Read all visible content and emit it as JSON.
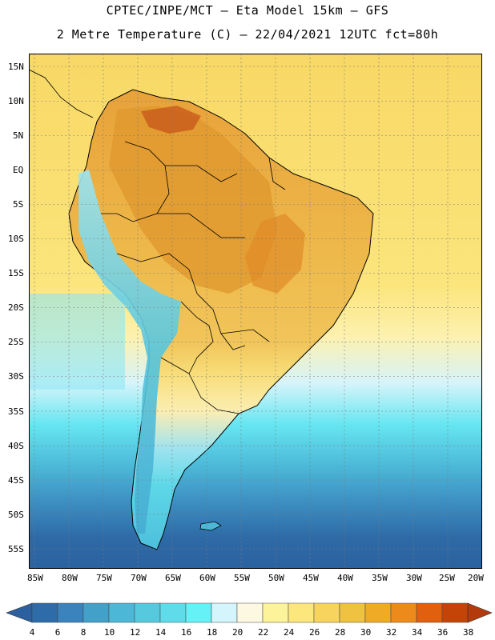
{
  "header": {
    "line1": "CPTEC/INPE/MCT –  Eta Model 15km – GFS",
    "line2": "2 Metre Temperature (C) – 22/04/2021 12UTC fct=80h"
  },
  "map": {
    "lat_labels": [
      "15N",
      "10N",
      "5N",
      "EQ",
      "5S",
      "10S",
      "15S",
      "20S",
      "25S",
      "30S",
      "35S",
      "40S",
      "45S",
      "50S",
      "55S"
    ],
    "lon_labels": [
      "85W",
      "80W",
      "75W",
      "70W",
      "65W",
      "60W",
      "55W",
      "50W",
      "45W",
      "40W",
      "35W",
      "30W",
      "25W",
      "20W"
    ]
  },
  "colorbar": {
    "labels": [
      "4",
      "6",
      "8",
      "10",
      "12",
      "14",
      "16",
      "18",
      "20",
      "22",
      "24",
      "26",
      "28",
      "30",
      "32",
      "34",
      "36",
      "38"
    ],
    "colors": [
      "#2d6ca8",
      "#3a83bd",
      "#43a0c8",
      "#4cb7d6",
      "#56c9df",
      "#5fdbe9",
      "#66f1f7",
      "#d3f5fb",
      "#fdf8e1",
      "#fdf39b",
      "#fbe77c",
      "#f6d45e",
      "#f0c242",
      "#efaa26",
      "#ed8a1c",
      "#e0600f",
      "#c44408"
    ],
    "left_arrow_color": "#2c5f9e",
    "right_arrow_color": "#b23a0c"
  },
  "palette": {
    "ocean_south": "#2e6aa6",
    "ocean_mid": "#47b0d4",
    "ocean_cool": "#66e6f1",
    "ocean_warm": "#fbe47a",
    "land_warm": "#f0b84a",
    "land_hot": "#d2731f"
  }
}
